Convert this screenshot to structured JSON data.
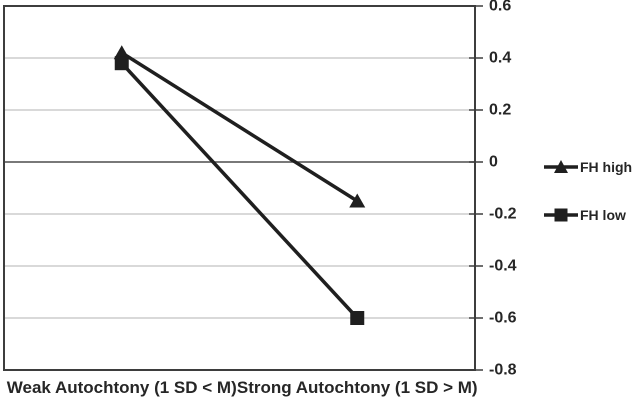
{
  "chart_data": {
    "type": "line",
    "title": "",
    "xlabel": "",
    "ylabel": "",
    "categories": [
      "Weak Autochtony (1 SD < M)",
      "Strong Autochtony (1 SD > M)"
    ],
    "series": [
      {
        "name": "FH high",
        "marker": "triangle",
        "values": [
          0.42,
          -0.15
        ]
      },
      {
        "name": "FH low",
        "marker": "square",
        "values": [
          0.38,
          -0.6
        ]
      }
    ],
    "ylim": [
      -0.8,
      0.6
    ],
    "y_ticks": [
      0.6,
      0.4,
      0.2,
      0,
      -0.2,
      -0.4,
      -0.6,
      -0.8
    ],
    "y_tick_labels": [
      "0.6",
      "0.4",
      "0.2",
      "0",
      "-0.2",
      "-0.4",
      "-0.6",
      "-0.8"
    ],
    "grid": "horizontal",
    "axis_side": "right",
    "legend_position": "right",
    "colors": {
      "series_color": "#1f1f1f",
      "marker_color": "#1f1f1f",
      "grid_color": "#b3b3b3",
      "zero_line_color": "#4d4d4d",
      "border_color": "#3d3d3d",
      "text_color": "#262626",
      "background": "#ffffff"
    }
  }
}
